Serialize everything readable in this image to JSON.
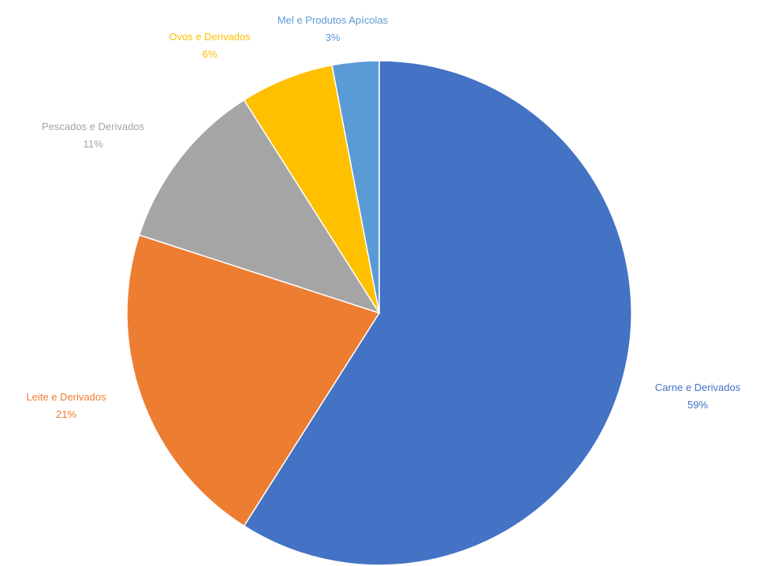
{
  "chart_data": {
    "type": "pie",
    "title": "",
    "slices": [
      {
        "label": "Carne e Derivados",
        "value_label": "59%",
        "value": 59,
        "color": "#4472C4"
      },
      {
        "label": "Leite e Derivados",
        "value_label": "21%",
        "value": 21,
        "color": "#ED7D31"
      },
      {
        "label": "Pescados e Derivados",
        "value_label": "11%",
        "value": 11,
        "color": "#A5A5A5"
      },
      {
        "label": "Ovos e Derivados",
        "value_label": "6%",
        "value": 6,
        "color": "#FFC000"
      },
      {
        "label": "Mel e Produtos Apícolas",
        "value_label": "3%",
        "value": 3,
        "color": "#5B9BD5"
      }
    ],
    "start": "12 o'clock",
    "direction": "clockwise",
    "legend": "none",
    "data_labels": "outside"
  }
}
